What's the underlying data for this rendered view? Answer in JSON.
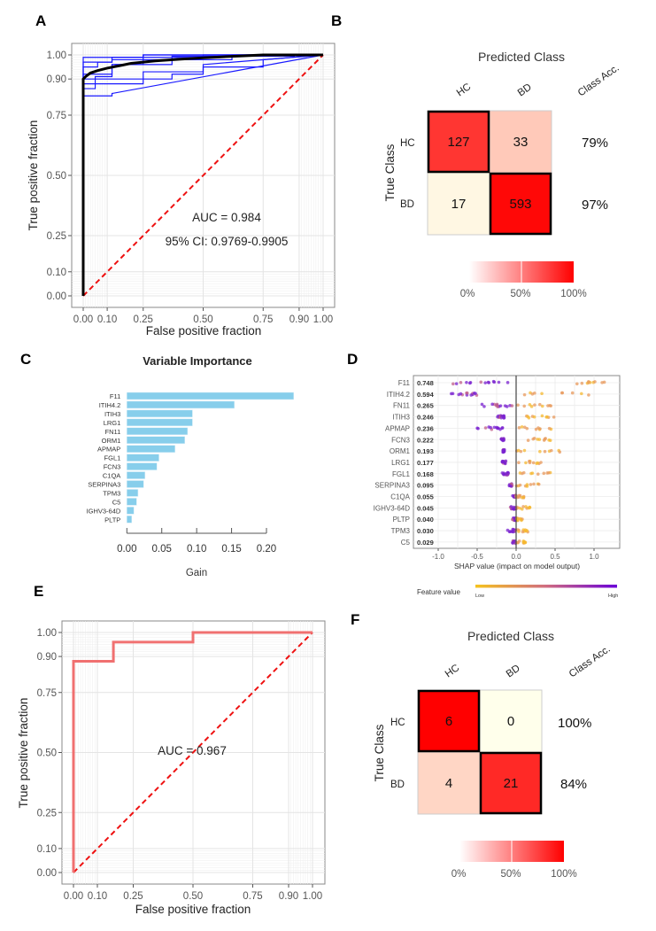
{
  "panels": {
    "A": "A",
    "B": "B",
    "C": "C",
    "D": "D",
    "E": "E",
    "F": "F"
  },
  "chart_data": [
    {
      "id": "A",
      "type": "line",
      "xlabel": "False positive fraction",
      "ylabel": "True positive fraction",
      "xticks": [
        "0.00",
        "0.10",
        "0.25",
        "0.50",
        "0.75",
        "0.90",
        "1.00"
      ],
      "xtick_values": [
        0,
        0.1,
        0.25,
        0.5,
        0.75,
        0.9,
        1.0
      ],
      "yticks": [
        "0.00",
        "0.10",
        "0.25",
        "0.50",
        "0.75",
        "0.90",
        "1.00"
      ],
      "ytick_values": [
        0,
        0.1,
        0.25,
        0.5,
        0.75,
        0.9,
        1.0
      ],
      "xlim": [
        0,
        1
      ],
      "ylim": [
        0,
        1
      ],
      "annotations": [
        "AUC = 0.984",
        "95% CI: 0.9769-0.9905"
      ],
      "mean_curve": {
        "name": "mean ROC",
        "color": "#000000",
        "x": [
          0,
          0,
          0.01,
          0.03,
          0.06,
          0.1,
          0.15,
          0.2,
          0.3,
          0.4,
          0.5,
          0.6,
          0.75,
          1.0
        ],
        "y": [
          0,
          0.9,
          0.91,
          0.925,
          0.935,
          0.945,
          0.955,
          0.965,
          0.975,
          0.982,
          0.988,
          0.993,
          1.0,
          1.0
        ]
      },
      "fold_curves": [
        {
          "color": "#1a1aff",
          "x": [
            0,
            0,
            0.12,
            0.12,
            1.0
          ],
          "y": [
            0,
            0.83,
            0.83,
            0.84,
            1.0
          ]
        },
        {
          "color": "#1a1aff",
          "x": [
            0,
            0,
            0.25,
            0.25,
            0.5,
            0.5,
            0.75,
            0.75,
            1.0
          ],
          "y": [
            0,
            0.9,
            0.9,
            0.93,
            0.93,
            0.95,
            0.95,
            0.98,
            1.0
          ]
        },
        {
          "color": "#1a1aff",
          "x": [
            0,
            0,
            0.05,
            0.05,
            0.12,
            0.12,
            0.25,
            0.25,
            1.0
          ],
          "y": [
            0,
            0.86,
            0.86,
            0.91,
            0.91,
            0.96,
            0.96,
            1.0,
            1.0
          ]
        },
        {
          "color": "#1a1aff",
          "x": [
            0,
            0,
            0.12,
            0.12,
            0.37,
            0.37,
            0.62,
            0.62,
            1.0
          ],
          "y": [
            0,
            0.92,
            0.92,
            0.96,
            0.96,
            0.98,
            0.98,
            1.0,
            1.0
          ]
        },
        {
          "color": "#1a1aff",
          "x": [
            0,
            0,
            0.06,
            0.06,
            0.12,
            0.12,
            0.5,
            0.5,
            1.0
          ],
          "y": [
            0,
            0.95,
            0.95,
            0.97,
            0.97,
            0.99,
            0.99,
            1.0,
            1.0
          ]
        },
        {
          "color": "#1a1aff",
          "x": [
            0,
            0,
            0.25,
            0.25,
            0.37,
            0.37,
            0.5,
            0.5,
            1.0
          ],
          "y": [
            0,
            0.88,
            0.88,
            0.9,
            0.9,
            0.92,
            0.92,
            0.96,
            1.0
          ]
        },
        {
          "color": "#1a1aff",
          "x": [
            0,
            0,
            0.12,
            0.12,
            0.37,
            0.37,
            0.88,
            0.88,
            1.0
          ],
          "y": [
            0,
            0.97,
            0.97,
            0.98,
            0.98,
            0.995,
            0.995,
            1.0,
            1.0
          ]
        },
        {
          "color": "#1a1aff",
          "x": [
            0,
            0,
            0.25,
            0.25,
            0.75,
            0.75,
            1.0
          ],
          "y": [
            0,
            0.99,
            0.99,
            1.0,
            1.0,
            1.0,
            1.0
          ]
        }
      ],
      "reference_line": {
        "color": "#ee1111",
        "style": "dashed",
        "x": [
          0,
          1
        ],
        "y": [
          0,
          1
        ]
      }
    },
    {
      "id": "B",
      "type": "heatmap",
      "title": "Predicted Class",
      "ylabel": "True Class",
      "col_labels": [
        "HC",
        "BD"
      ],
      "row_labels": [
        "HC",
        "BD"
      ],
      "acc_header": "Class Acc.",
      "values": [
        [
          127,
          33
        ],
        [
          17,
          593
        ]
      ],
      "row_fraction": [
        [
          0.79,
          0.21
        ],
        [
          0.03,
          0.97
        ]
      ],
      "class_acc": [
        "79%",
        "97%"
      ],
      "legend_ticks": [
        "0%",
        "50%",
        "100%"
      ],
      "colors": {
        "low": "#ffffff",
        "high": "#ff0000"
      }
    },
    {
      "id": "C",
      "type": "bar",
      "orientation": "horizontal",
      "title": "Variable Importance",
      "xlabel": "Gain",
      "categories": [
        "F11",
        "ITIH4.2",
        "ITIH3",
        "LRG1",
        "FN11",
        "ORM1",
        "APMAP",
        "FGL1",
        "FCN3",
        "C1QA",
        "SERPINA3",
        "TPM3",
        "C5",
        "IGHV3-64D",
        "PLTP"
      ],
      "values": [
        0.239,
        0.154,
        0.094,
        0.094,
        0.087,
        0.083,
        0.069,
        0.046,
        0.043,
        0.026,
        0.024,
        0.016,
        0.014,
        0.01,
        0.007
      ],
      "xticks": [
        "0.00",
        "0.05",
        "0.10",
        "0.15",
        "0.20"
      ],
      "xtick_values": [
        0,
        0.05,
        0.1,
        0.15,
        0.2
      ],
      "xlim": [
        0,
        0.24
      ],
      "bar_color": "#87ceeb"
    },
    {
      "id": "D",
      "type": "scatter",
      "xlabel": "SHAP value (impact on model output)",
      "features": [
        "F11",
        "ITIH4.2",
        "FN11",
        "ITIH3",
        "APMAP",
        "FCN3",
        "ORM1",
        "LRG1",
        "FGL1",
        "SERPINA3",
        "C1QA",
        "IGHV3-64D",
        "PLTP",
        "TPM3",
        "C5"
      ],
      "mean_abs_shap": [
        "0.748",
        "0.594",
        "0.265",
        "0.246",
        "0.236",
        "0.222",
        "0.193",
        "0.177",
        "0.168",
        "0.095",
        "0.055",
        "0.045",
        "0.040",
        "0.030",
        "0.029"
      ],
      "xticks": [
        "-1.0",
        "-0.5",
        "0.0",
        "0.5",
        "1.0"
      ],
      "xtick_values": [
        -1,
        -0.5,
        0,
        0.5,
        1
      ],
      "xlim": [
        -1.3,
        1.3
      ],
      "legend_title": "Feature value",
      "legend_low": "Low",
      "legend_high": "High",
      "colors": {
        "low": "#f5c31e",
        "high": "#6a00d8"
      },
      "point_ranges": [
        {
          "neg": [
            -0.95,
            -0.1
          ],
          "pos": [
            0.75,
            1.15
          ]
        },
        {
          "neg": [
            -0.85,
            -0.5
          ],
          "pos": [
            0.1,
            1.1
          ]
        },
        {
          "neg": [
            -0.55,
            -0.05
          ],
          "pos": [
            0.0,
            0.45
          ]
        },
        {
          "neg": [
            -0.25,
            -0.15
          ],
          "pos": [
            0.1,
            0.5
          ]
        },
        {
          "neg": [
            -0.5,
            -0.15
          ],
          "pos": [
            0.0,
            0.45
          ]
        },
        {
          "neg": [
            -0.2,
            -0.15
          ],
          "pos": [
            0.15,
            0.45
          ]
        },
        {
          "neg": [
            -0.17,
            -0.15
          ],
          "pos": [
            -0.05,
            0.58
          ]
        },
        {
          "neg": [
            -0.2,
            -0.13
          ],
          "pos": [
            0.0,
            0.35
          ]
        },
        {
          "neg": [
            -0.18,
            -0.1
          ],
          "pos": [
            0.05,
            0.45
          ]
        },
        {
          "neg": [
            -0.1,
            -0.05
          ],
          "pos": [
            0.0,
            0.3
          ]
        },
        {
          "neg": [
            -0.05,
            0.0
          ],
          "pos": [
            0.0,
            0.15
          ]
        },
        {
          "neg": [
            -0.08,
            0.0
          ],
          "pos": [
            0.0,
            0.18
          ]
        },
        {
          "neg": [
            -0.05,
            0.0
          ],
          "pos": [
            0.0,
            0.08
          ]
        },
        {
          "neg": [
            -0.12,
            0.0
          ],
          "pos": [
            0.0,
            0.18
          ]
        },
        {
          "neg": [
            -0.05,
            0.0
          ],
          "pos": [
            0.02,
            0.12
          ]
        }
      ]
    },
    {
      "id": "E",
      "type": "line",
      "xlabel": "False positive fraction",
      "ylabel": "True positive fraction",
      "xticks": [
        "0.00",
        "0.10",
        "0.25",
        "0.50",
        "0.75",
        "0.90",
        "1.00"
      ],
      "xtick_values": [
        0,
        0.1,
        0.25,
        0.5,
        0.75,
        0.9,
        1.0
      ],
      "yticks": [
        "0.00",
        "0.10",
        "0.25",
        "0.50",
        "0.75",
        "0.90",
        "1.00"
      ],
      "ytick_values": [
        0,
        0.1,
        0.25,
        0.5,
        0.75,
        0.9,
        1.0
      ],
      "xlim": [
        0,
        1
      ],
      "ylim": [
        0,
        1
      ],
      "annotations": [
        "AUC = 0.967"
      ],
      "roc_curve": {
        "color": "#f07070",
        "x": [
          0,
          0,
          0.167,
          0.167,
          0.5,
          0.5,
          1.0
        ],
        "y": [
          0,
          0.88,
          0.88,
          0.96,
          0.96,
          1.0,
          1.0
        ]
      },
      "reference_line": {
        "color": "#ee1111",
        "style": "dashed",
        "x": [
          0,
          1
        ],
        "y": [
          0,
          1
        ]
      }
    },
    {
      "id": "F",
      "type": "heatmap",
      "title": "Predicted Class",
      "ylabel": "True Class",
      "col_labels": [
        "HC",
        "BD"
      ],
      "row_labels": [
        "HC",
        "BD"
      ],
      "acc_header": "Class Acc.",
      "values": [
        [
          6,
          0
        ],
        [
          4,
          21
        ]
      ],
      "row_fraction": [
        [
          1.0,
          0.0
        ],
        [
          0.16,
          0.84
        ]
      ],
      "class_acc": [
        "100%",
        "84%"
      ],
      "legend_ticks": [
        "0%",
        "50%",
        "100%"
      ],
      "colors": {
        "low": "#ffffff",
        "high": "#ff0000"
      }
    }
  ]
}
